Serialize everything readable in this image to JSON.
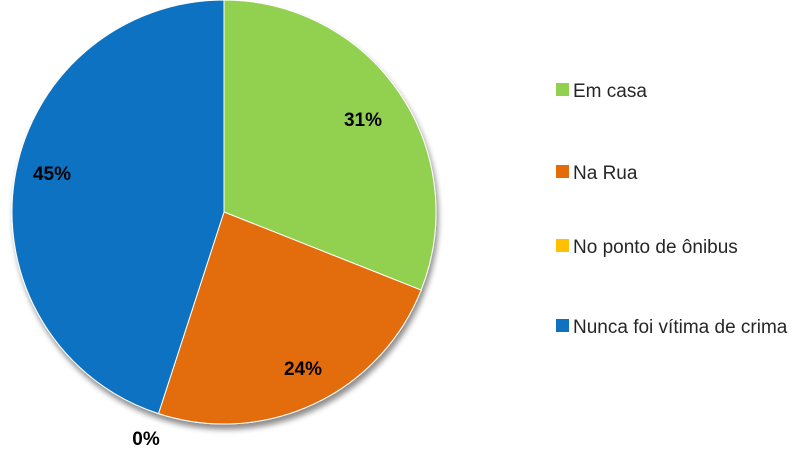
{
  "chart_data": {
    "type": "pie",
    "categories": [
      "Em casa",
      "Na Rua",
      "No ponto de ônibus",
      "Nunca foi vítima de crima"
    ],
    "values": [
      31,
      24,
      0,
      45
    ],
    "value_labels": [
      "31%",
      "24%",
      "0%",
      "45%"
    ],
    "colors": [
      "#92d050",
      "#e36c09",
      "#ffc000",
      "#0e72c1"
    ],
    "legend_position": "right"
  }
}
